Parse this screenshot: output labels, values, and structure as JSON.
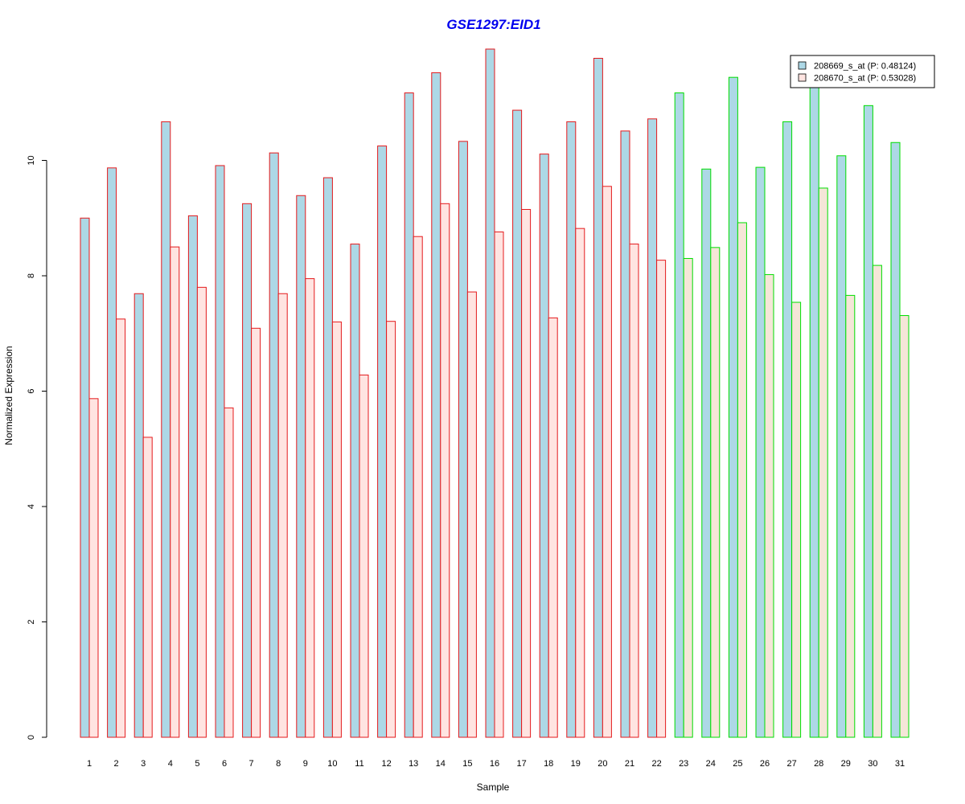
{
  "chart_data": {
    "type": "bar",
    "title": "GSE1297:EID1",
    "xlabel": "Sample",
    "ylabel": "Normalized Expression",
    "ylim": [
      0,
      12
    ],
    "yticks": [
      "0",
      "2",
      "4",
      "6",
      "8",
      "10"
    ],
    "grid": false,
    "legend_position": "top-right",
    "categories": [
      "1",
      "2",
      "3",
      "4",
      "5",
      "6",
      "7",
      "8",
      "9",
      "10",
      "11",
      "12",
      "13",
      "14",
      "15",
      "16",
      "17",
      "18",
      "19",
      "20",
      "21",
      "22",
      "23",
      "24",
      "25",
      "26",
      "27",
      "28",
      "29",
      "30",
      "31"
    ],
    "groups": [
      {
        "samples": [
          "1",
          "2",
          "3",
          "4",
          "5",
          "6",
          "7",
          "8",
          "9",
          "10",
          "11",
          "12",
          "13",
          "14",
          "15",
          "16",
          "17",
          "18",
          "19",
          "20",
          "21",
          "22"
        ],
        "border_color": "#e41a1c"
      },
      {
        "samples": [
          "23",
          "24",
          "25",
          "26",
          "27",
          "28",
          "29",
          "30",
          "31"
        ],
        "border_color": "#00dd00"
      }
    ],
    "series": [
      {
        "name": "208669_s_at (P: 0.48124)",
        "fill_color": "#add8e6",
        "values": [
          9.0,
          9.87,
          7.69,
          10.67,
          9.04,
          9.91,
          9.25,
          10.13,
          9.39,
          9.7,
          8.55,
          10.25,
          11.17,
          11.52,
          10.33,
          11.93,
          10.87,
          10.11,
          10.67,
          11.77,
          10.51,
          10.72,
          11.17,
          9.85,
          11.44,
          9.88,
          10.67,
          11.4,
          10.08,
          10.95,
          10.31
        ]
      },
      {
        "name": "208670_s_at (P: 0.53028)",
        "fill_color": "#ffe4e1",
        "fill_color_alt": "#f5e6d8",
        "values": [
          5.87,
          7.25,
          5.2,
          8.5,
          7.8,
          5.71,
          7.09,
          7.69,
          7.95,
          7.2,
          6.28,
          7.21,
          8.68,
          9.25,
          7.72,
          8.76,
          9.15,
          7.27,
          8.82,
          9.55,
          8.55,
          8.27,
          8.3,
          8.49,
          8.92,
          8.02,
          7.54,
          9.52,
          7.66,
          8.18,
          7.31
        ]
      }
    ]
  },
  "colors": {
    "title": "#0000ee",
    "axis": "#000000"
  }
}
